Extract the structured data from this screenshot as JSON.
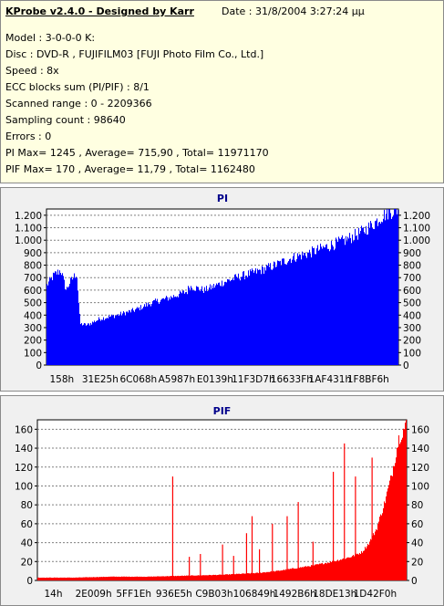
{
  "header": {
    "title": "KProbe v2.4.0 - Designed by Karr",
    "date": "Date : 31/8/2004 3:27:24 µµ"
  },
  "info_lines": [
    "Model : 3-0-0-0 K:",
    "Disc : DVD-R , FUJIFILM03 [FUJI Photo Film Co., Ltd.]",
    "Speed : 8x",
    "ECC blocks sum (PI/PIF) : 8/1",
    "Scanned range : 0 - 2209366",
    "Sampling count : 98640",
    "Errors : 0",
    "PI Max= 1245 , Average= 715,90 , Total= 11971170",
    "PIF Max= 170 , Average= 11,79 , Total= 1162480"
  ],
  "colors": {
    "pi_fill": "#0000ff",
    "pif_fill": "#ff0000",
    "plot_bg": "#ffffff",
    "title": "#00008b",
    "grid": "#808080"
  },
  "chart_data": [
    {
      "type": "area",
      "title": "PI",
      "ylim": [
        0,
        1250
      ],
      "yticks": [
        0,
        100,
        200,
        300,
        400,
        500,
        600,
        700,
        800,
        900,
        1000,
        1100,
        1200
      ],
      "ytick_labels": [
        "0",
        "100",
        "200",
        "300",
        "400",
        "500",
        "600",
        "700",
        "800",
        "900",
        "1.000",
        "1.100",
        "1.200"
      ],
      "xtick_labels": [
        "158h",
        "31E25h",
        "6C068h",
        "A5987h",
        "E0139h",
        "11F3D7h",
        "16633Fh",
        "1AF431h",
        "1F8BF6h"
      ],
      "grid": true,
      "series": [
        {
          "x": [
            0,
            0.02,
            0.04,
            0.055,
            0.065,
            0.075,
            0.085,
            0.095,
            0.115,
            0.15,
            0.2,
            0.25,
            0.3,
            0.35,
            0.4,
            0.405,
            0.45,
            0.5,
            0.55,
            0.6,
            0.65,
            0.7,
            0.75,
            0.8,
            0.85,
            0.9,
            0.93,
            0.95,
            0.97,
            1.0
          ],
          "values": [
            640,
            720,
            760,
            600,
            660,
            700,
            740,
            330,
            320,
            370,
            400,
            440,
            500,
            540,
            590,
            630,
            600,
            660,
            710,
            750,
            800,
            860,
            900,
            950,
            1000,
            1070,
            1130,
            1180,
            1220,
            1245
          ]
        }
      ]
    },
    {
      "type": "area",
      "title": "PIF",
      "ylim": [
        0,
        170
      ],
      "yticks": [
        0,
        20,
        40,
        60,
        80,
        100,
        120,
        140,
        160
      ],
      "ytick_labels": [
        "0",
        "20",
        "40",
        "60",
        "80",
        "100",
        "120",
        "140",
        "160"
      ],
      "xtick_labels": [
        "14h",
        "2E009h",
        "5FF1Eh",
        "936E5h",
        "C9B03h",
        "106849h",
        "1492B6h",
        "18DE13h",
        "1D42F0h"
      ],
      "grid": true,
      "series": [
        {
          "x": [
            0,
            0.1,
            0.2,
            0.3,
            0.4,
            0.5,
            0.6,
            0.65,
            0.7,
            0.75,
            0.8,
            0.85,
            0.88,
            0.9,
            0.92,
            0.94,
            0.96,
            0.98,
            1.0
          ],
          "values": [
            3,
            3,
            4,
            4,
            5,
            6,
            8,
            10,
            13,
            16,
            20,
            25,
            30,
            40,
            55,
            80,
            110,
            150,
            165
          ],
          "spikes": [
            {
              "x": 0.365,
              "value": 110
            },
            {
              "x": 0.41,
              "value": 25
            },
            {
              "x": 0.44,
              "value": 28
            },
            {
              "x": 0.5,
              "value": 38
            },
            {
              "x": 0.53,
              "value": 26
            },
            {
              "x": 0.565,
              "value": 50
            },
            {
              "x": 0.58,
              "value": 68
            },
            {
              "x": 0.6,
              "value": 33
            },
            {
              "x": 0.635,
              "value": 60
            },
            {
              "x": 0.675,
              "value": 68
            },
            {
              "x": 0.705,
              "value": 83
            },
            {
              "x": 0.745,
              "value": 41
            },
            {
              "x": 0.8,
              "value": 115
            },
            {
              "x": 0.83,
              "value": 145
            },
            {
              "x": 0.86,
              "value": 110
            },
            {
              "x": 0.905,
              "value": 130
            }
          ]
        }
      ]
    }
  ]
}
